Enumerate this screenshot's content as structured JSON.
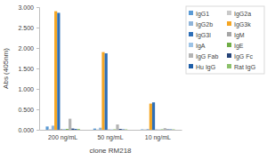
{
  "chart_data": {
    "type": "bar",
    "x_label": "clone RM218",
    "y_label": "Abs (405nm)",
    "categories": [
      "200 ng/mL",
      "50 ng/mL",
      "10 ng/mL"
    ],
    "series": [
      {
        "name": "IgG1",
        "color": "#5b9bd5",
        "values": [
          0.08,
          0.03,
          0.01
        ]
      },
      {
        "name": "IgG2a",
        "color": "#c9c9c9",
        "values": [
          0.02,
          0.01,
          0.01
        ]
      },
      {
        "name": "IgG2b",
        "color": "#8fb4d9",
        "values": [
          0.1,
          0.05,
          0.02
        ]
      },
      {
        "name": "IgG3k",
        "color": "#f5a623",
        "values": [
          2.9,
          1.9,
          0.64
        ]
      },
      {
        "name": "IgG3l",
        "color": "#2e6fb7",
        "values": [
          2.86,
          1.87,
          0.67
        ]
      },
      {
        "name": "IgM",
        "color": "#a5a5a5",
        "values": [
          0.02,
          0.01,
          0.01
        ]
      },
      {
        "name": "IgA",
        "color": "#9dc3e6",
        "values": [
          0.02,
          0.01,
          0.01
        ]
      },
      {
        "name": "IgE",
        "color": "#70ad47",
        "values": [
          0.02,
          0.01,
          0.01
        ]
      },
      {
        "name": "IgG Fab",
        "color": "#b4b4b4",
        "values": [
          0.27,
          0.13,
          0.04
        ]
      },
      {
        "name": "IgG Fc",
        "color": "#264478",
        "values": [
          0.03,
          0.02,
          0.01
        ]
      },
      {
        "name": "Hu IgG",
        "color": "#1f5fa8",
        "values": [
          0.02,
          0.01,
          0.01
        ]
      },
      {
        "name": "Rat IgG",
        "color": "#8cc16b",
        "values": [
          0.02,
          0.01,
          0.01
        ]
      }
    ],
    "ylim": [
      0,
      3
    ],
    "yticks": [
      {
        "value": 0,
        "label": "0.000"
      },
      {
        "value": 0.5,
        "label": "0.500"
      },
      {
        "value": 1,
        "label": "1.000"
      },
      {
        "value": 1.5,
        "label": "1.500"
      },
      {
        "value": 2,
        "label": "2.000"
      },
      {
        "value": 2.5,
        "label": "2.500"
      },
      {
        "value": 3,
        "label": "3.000"
      }
    ],
    "legend": "right",
    "grid": false
  }
}
